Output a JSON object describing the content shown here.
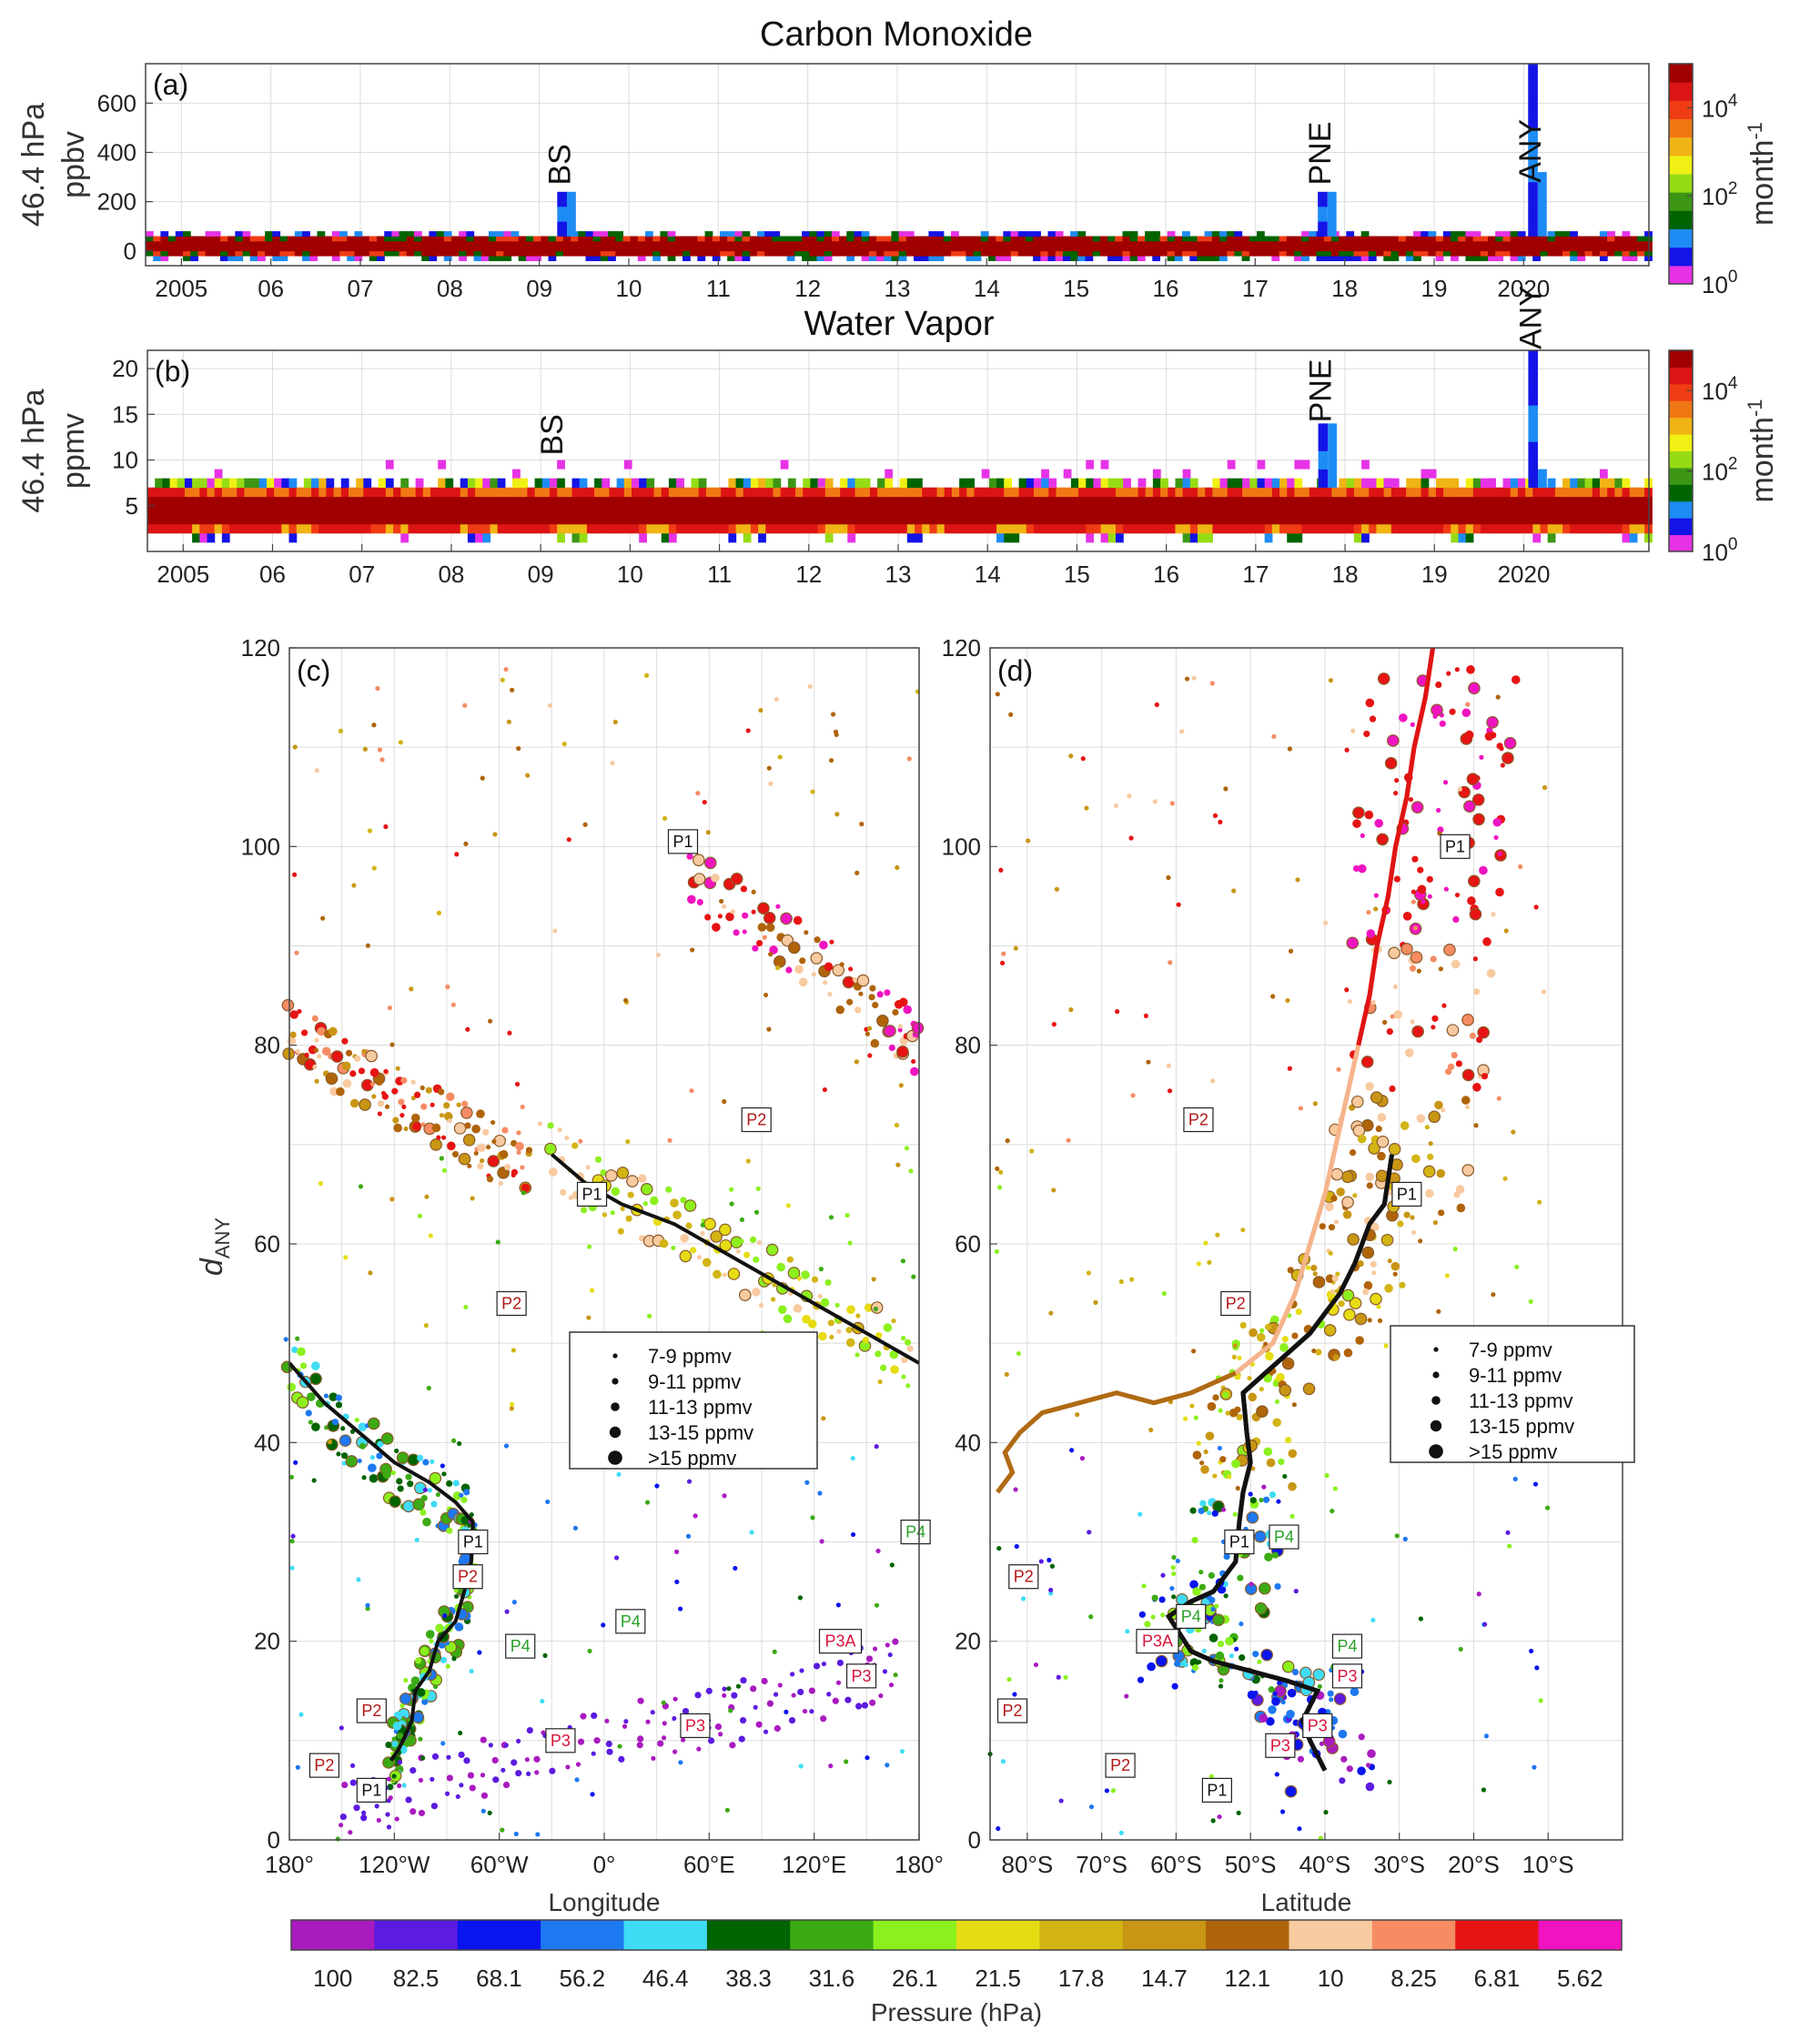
{
  "chart_data": [
    {
      "id": "a",
      "type": "heatmap",
      "title": "Carbon Monoxide",
      "panel_label": "(a)",
      "ylabel_line1": "46.4 hPa",
      "ylabel_line2": "ppbv",
      "colorbar_label": "month",
      "colorbar_label_exp": "-1",
      "colorbar_ticks": [
        {
          "base": "10",
          "exp": "0"
        },
        {
          "base": "10",
          "exp": "2"
        },
        {
          "base": "10",
          "exp": "4"
        }
      ],
      "colorbar_scale": "log",
      "colorbar_range": [
        1,
        100000
      ],
      "ylim": [
        -60,
        760
      ],
      "yticks": [
        "0",
        "200",
        "400",
        "600"
      ],
      "xticks": [
        "2005",
        "06",
        "07",
        "08",
        "09",
        "10",
        "11",
        "12",
        "13",
        "14",
        "15",
        "16",
        "17",
        "18",
        "19",
        "20",
        "2020"
      ],
      "xrange_years": [
        2004.6,
        2021.4
      ],
      "events": [
        {
          "label": "BS",
          "year": 2009.2,
          "peak": 230
        },
        {
          "label": "PNE",
          "year": 2017.7,
          "peak": 230
        },
        {
          "label": "ANY",
          "year": 2020.05,
          "peak": 760
        }
      ]
    },
    {
      "id": "b",
      "type": "heatmap",
      "title": "Water Vapor",
      "panel_label": "(b)",
      "ylabel_line1": "46.4 hPa",
      "ylabel_line2": "ppmv",
      "colorbar_label": "month",
      "colorbar_label_exp": "-1",
      "colorbar_ticks": [
        {
          "base": "10",
          "exp": "0"
        },
        {
          "base": "10",
          "exp": "2"
        },
        {
          "base": "10",
          "exp": "4"
        }
      ],
      "colorbar_scale": "log",
      "colorbar_range": [
        1,
        100000
      ],
      "ylim": [
        0,
        22
      ],
      "yticks": [
        "5",
        "10",
        "15",
        "20"
      ],
      "xticks": [
        "2005",
        "06",
        "07",
        "08",
        "09",
        "10",
        "11",
        "12",
        "13",
        "14",
        "15",
        "16",
        "17",
        "18",
        "19",
        "20",
        "2020"
      ],
      "xrange_years": [
        2004.6,
        2021.4
      ],
      "events": [
        {
          "label": "BS",
          "year": 2009.1,
          "peak": 0
        },
        {
          "label": "PNE",
          "year": 2017.7,
          "peak": 13.5
        },
        {
          "label": "ANY",
          "year": 2020.05,
          "peak": 21.5
        }
      ]
    },
    {
      "id": "c",
      "type": "scatter",
      "panel_label": "(c)",
      "xlabel": "Longitude",
      "ylabel": "d",
      "ylabel_sub": "ANY",
      "xlim": [
        -180,
        180
      ],
      "ylim": [
        0,
        120
      ],
      "xticks": [
        "180°",
        "120°W",
        "60°W",
        "0°",
        "60°E",
        "120°E",
        "180°"
      ],
      "yticks": [
        "0",
        "20",
        "40",
        "60",
        "80",
        "100",
        "120"
      ],
      "legend": [
        "7-9 ppmv",
        "9-11 ppmv",
        "11-13 ppmv",
        "13-15 ppmv",
        ">15 ppmv"
      ],
      "tracks": [
        {
          "name": "P1",
          "points": [
            [
              -30,
              69
            ],
            [
              0,
              65
            ],
            [
              30,
              63
            ],
            [
              60,
              60
            ],
            [
              90,
              57
            ],
            [
              120,
              54
            ],
            [
              150,
              51
            ],
            [
              180,
              48
            ]
          ],
          "pressure": "21.5"
        },
        {
          "name": "P1",
          "points": [
            [
              -180,
              48
            ],
            [
              -160,
              43
            ],
            [
              -140,
              40
            ],
            [
              -120,
              37
            ],
            [
              -100,
              35
            ],
            [
              -80,
              33
            ],
            [
              -75,
              29
            ],
            [
              -80,
              24
            ],
            [
              -90,
              20
            ],
            [
              -100,
              17
            ],
            [
              -110,
              14
            ],
            [
              -115,
              11
            ],
            [
              -118,
              9
            ],
            [
              -122,
              8
            ]
          ],
          "pressure": "38.3"
        },
        {
          "name": "P1",
          "points": [
            [
              -180,
              81
            ],
            [
              -160,
              79
            ],
            [
              -140,
              77
            ],
            [
              -120,
              75
            ],
            [
              -100,
              73
            ],
            [
              -80,
              71
            ],
            [
              -60,
              69
            ],
            [
              -40,
              68
            ]
          ],
          "pressure": "14.7"
        },
        {
          "name": "P1",
          "points": [
            [
              50,
              97
            ],
            [
              80,
              93
            ],
            [
              110,
              90
            ],
            [
              140,
              86
            ],
            [
              165,
              82
            ],
            [
              180,
              80
            ]
          ],
          "pressure": "5.62"
        },
        {
          "name": "P4",
          "points": [
            [
              -150,
              3
            ],
            [
              -110,
              5
            ],
            [
              -70,
              7
            ],
            [
              -30,
              9
            ],
            [
              20,
              11
            ],
            [
              60,
              12
            ],
            [
              100,
              14
            ],
            [
              140,
              16
            ],
            [
              170,
              18
            ]
          ],
          "pressure": "82.5"
        }
      ],
      "labels": [
        {
          "text": "P1",
          "x": 45,
          "y": 100.5,
          "color": "#111111"
        },
        {
          "text": "P2",
          "x": 87,
          "y": 72.5,
          "color": "#b01818"
        },
        {
          "text": "P1",
          "x": -7,
          "y": 65,
          "color": "#111111"
        },
        {
          "text": "P2",
          "x": -53,
          "y": 54,
          "color": "#b01818"
        },
        {
          "text": "P1",
          "x": -75,
          "y": 30,
          "color": "#111111"
        },
        {
          "text": "P2",
          "x": -78,
          "y": 26.5,
          "color": "#b01818"
        },
        {
          "text": "P4",
          "x": 178,
          "y": 31,
          "color": "#2aa02a"
        },
        {
          "text": "P4",
          "x": 15,
          "y": 22,
          "color": "#2aa02a"
        },
        {
          "text": "P4",
          "x": -48,
          "y": 19.5,
          "color": "#2aa02a"
        },
        {
          "text": "P3A",
          "x": 135,
          "y": 20,
          "color": "#d8143c"
        },
        {
          "text": "P3",
          "x": 147,
          "y": 16.5,
          "color": "#d8143c"
        },
        {
          "text": "P2",
          "x": -133,
          "y": 13,
          "color": "#b01818"
        },
        {
          "text": "P3",
          "x": 52,
          "y": 11.5,
          "color": "#d8143c"
        },
        {
          "text": "P3",
          "x": -25,
          "y": 10,
          "color": "#d8143c"
        },
        {
          "text": "P2",
          "x": -160,
          "y": 7.5,
          "color": "#b01818"
        },
        {
          "text": "P1",
          "x": -133,
          "y": 5,
          "color": "#111111"
        }
      ]
    },
    {
      "id": "d",
      "type": "scatter",
      "panel_label": "(d)",
      "xlabel": "Latitude",
      "xlim": [
        -85,
        0
      ],
      "ylim": [
        0,
        120
      ],
      "xticks": [
        "80°S",
        "70°S",
        "60°S",
        "50°S",
        "40°S",
        "30°S",
        "20°S",
        "10°S"
      ],
      "yticks": [
        "0",
        "20",
        "40",
        "60",
        "80",
        "100",
        "120"
      ],
      "legend": [
        "7-9 ppmv",
        "9-11 ppmv",
        "11-13 ppmv",
        "13-15 ppmv",
        ">15 ppmv"
      ],
      "labels": [
        {
          "text": "P1",
          "x": -22.5,
          "y": 100,
          "color": "#111111"
        },
        {
          "text": "P2",
          "x": -57,
          "y": 72.5,
          "color": "#b01818"
        },
        {
          "text": "P1",
          "x": -29,
          "y": 65,
          "color": "#111111"
        },
        {
          "text": "P2",
          "x": -52,
          "y": 54,
          "color": "#b01818"
        },
        {
          "text": "P1",
          "x": -51.5,
          "y": 30,
          "color": "#111111"
        },
        {
          "text": "P4",
          "x": -45.5,
          "y": 30.5,
          "color": "#2aa02a"
        },
        {
          "text": "P2",
          "x": -80.5,
          "y": 26.5,
          "color": "#b01818"
        },
        {
          "text": "P4",
          "x": -58,
          "y": 22.5,
          "color": "#2aa02a"
        },
        {
          "text": "P3A",
          "x": -62.5,
          "y": 20,
          "color": "#d8143c"
        },
        {
          "text": "P4",
          "x": -37,
          "y": 19.5,
          "color": "#2aa02a"
        },
        {
          "text": "P3",
          "x": -37,
          "y": 16.5,
          "color": "#d8143c"
        },
        {
          "text": "P2",
          "x": -82,
          "y": 13,
          "color": "#b01818"
        },
        {
          "text": "P3",
          "x": -41,
          "y": 11.5,
          "color": "#d8143c"
        },
        {
          "text": "P3",
          "x": -46,
          "y": 9.5,
          "color": "#d8143c"
        },
        {
          "text": "P2",
          "x": -67.5,
          "y": 7.5,
          "color": "#b01818"
        },
        {
          "text": "P1",
          "x": -54.5,
          "y": 5,
          "color": "#111111"
        }
      ],
      "lines": [
        {
          "color": "#e01414",
          "points": [
            [
              -25.5,
              120
            ],
            [
              -26.5,
              115
            ],
            [
              -28,
              110
            ],
            [
              -29,
              105
            ],
            [
              -30.5,
              100
            ],
            [
              -31.5,
              95
            ],
            [
              -33,
              90
            ],
            [
              -34,
              85
            ],
            [
              -35.5,
              80
            ]
          ]
        },
        {
          "color": "#f5b48c",
          "points": [
            [
              -35.5,
              80
            ],
            [
              -37,
              75
            ],
            [
              -38.5,
              70
            ],
            [
              -40,
              65
            ],
            [
              -42,
              60
            ],
            [
              -44,
              55
            ],
            [
              -47,
              50
            ],
            [
              -52,
              47
            ]
          ]
        },
        {
          "color": "#b06a14",
          "points": [
            [
              -52,
              47
            ],
            [
              -58,
              45
            ],
            [
              -63,
              44
            ],
            [
              -68,
              45
            ],
            [
              -73,
              44
            ],
            [
              -78,
              43
            ],
            [
              -81,
              41
            ],
            [
              -83,
              39
            ],
            [
              -82,
              37
            ],
            [
              -84,
              35
            ]
          ]
        },
        {
          "color": "#111111",
          "points": [
            [
              -31,
              69
            ],
            [
              -32,
              64
            ],
            [
              -34,
              62
            ],
            [
              -36,
              58
            ],
            [
              -38,
              55
            ],
            [
              -40,
              53
            ],
            [
              -42,
              51
            ],
            [
              -45,
              49
            ],
            [
              -48,
              47
            ],
            [
              -51,
              45
            ],
            [
              -50.5,
              41
            ],
            [
              -50,
              38
            ],
            [
              -51,
              35
            ],
            [
              -51.5,
              32
            ],
            [
              -52,
              28
            ],
            [
              -55,
              25
            ],
            [
              -58,
              24
            ],
            [
              -61,
              22.5
            ],
            [
              -58,
              19
            ],
            [
              -55,
              18
            ],
            [
              -50,
              17
            ],
            [
              -45,
              16
            ],
            [
              -41,
              15
            ],
            [
              -43,
              12
            ],
            [
              -42,
              10
            ],
            [
              -40,
              7
            ]
          ]
        }
      ]
    }
  ],
  "pressure_colorbar": {
    "label": "Pressure (hPa)",
    "ticks": [
      "100",
      "82.5",
      "68.1",
      "56.2",
      "46.4",
      "38.3",
      "31.6",
      "26.1",
      "21.5",
      "17.8",
      "14.7",
      "12.1",
      "10",
      "8.25",
      "6.81",
      "5.62"
    ],
    "colors": [
      "#a91bbf",
      "#5b1be0",
      "#0a14ee",
      "#1e78f0",
      "#40dcf5",
      "#006400",
      "#3caa14",
      "#8cf01e",
      "#e6dc14",
      "#d2b414",
      "#c89614",
      "#b0640a",
      "#f8caa0",
      "#f58c64",
      "#e61414",
      "#f014c0"
    ]
  },
  "heatmap_colors": [
    "#e632e6",
    "#1414e6",
    "#1e8cf5",
    "#006400",
    "#3c9614",
    "#96dc14",
    "#f0f014",
    "#f0b414",
    "#f07814",
    "#f03c14",
    "#dc1414",
    "#a00000"
  ]
}
